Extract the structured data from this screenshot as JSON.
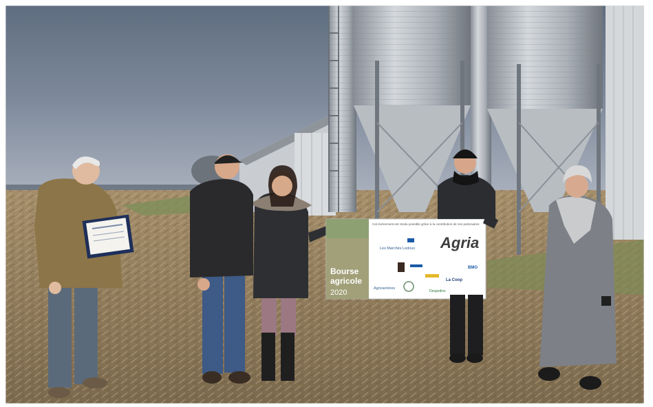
{
  "photo": {
    "board": {
      "line1": "Cet événement est rendu possible grâce à la contribution de nos partenaires",
      "brand": "Agria",
      "title_line1": "Bourse",
      "title_line2": "agricole",
      "year": "2020",
      "logos": [
        "Les Marchés Ledoux",
        "Agricarrières",
        "La Coop",
        "BMO",
        "Desjardins"
      ]
    }
  }
}
